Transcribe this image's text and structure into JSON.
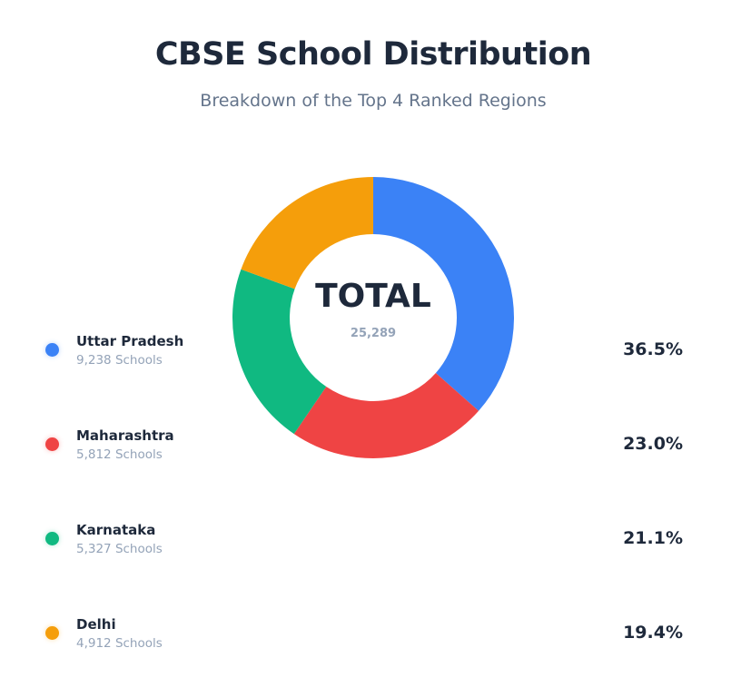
{
  "chart_data": {
    "type": "pie",
    "title": "CBSE School Distribution",
    "subtitle": "Breakdown of the Top 4 Ranked Regions",
    "center_label": "TOTAL",
    "total": "25,289",
    "slices": [
      {
        "name": "Uttar Pradesh",
        "count": "9,238 Schools",
        "value": 9238,
        "percent": "36.5%",
        "color": "#3b82f6"
      },
      {
        "name": "Maharashtra",
        "count": "5,812 Schools",
        "value": 5812,
        "percent": "23.0%",
        "color": "#ef4444"
      },
      {
        "name": "Karnataka",
        "count": "5,327 Schools",
        "value": 5327,
        "percent": "21.1%",
        "color": "#10b981"
      },
      {
        "name": "Delhi",
        "count": "4,912 Schools",
        "value": 4912,
        "percent": "19.4%",
        "color": "#f59e0b"
      }
    ],
    "donut": true
  }
}
